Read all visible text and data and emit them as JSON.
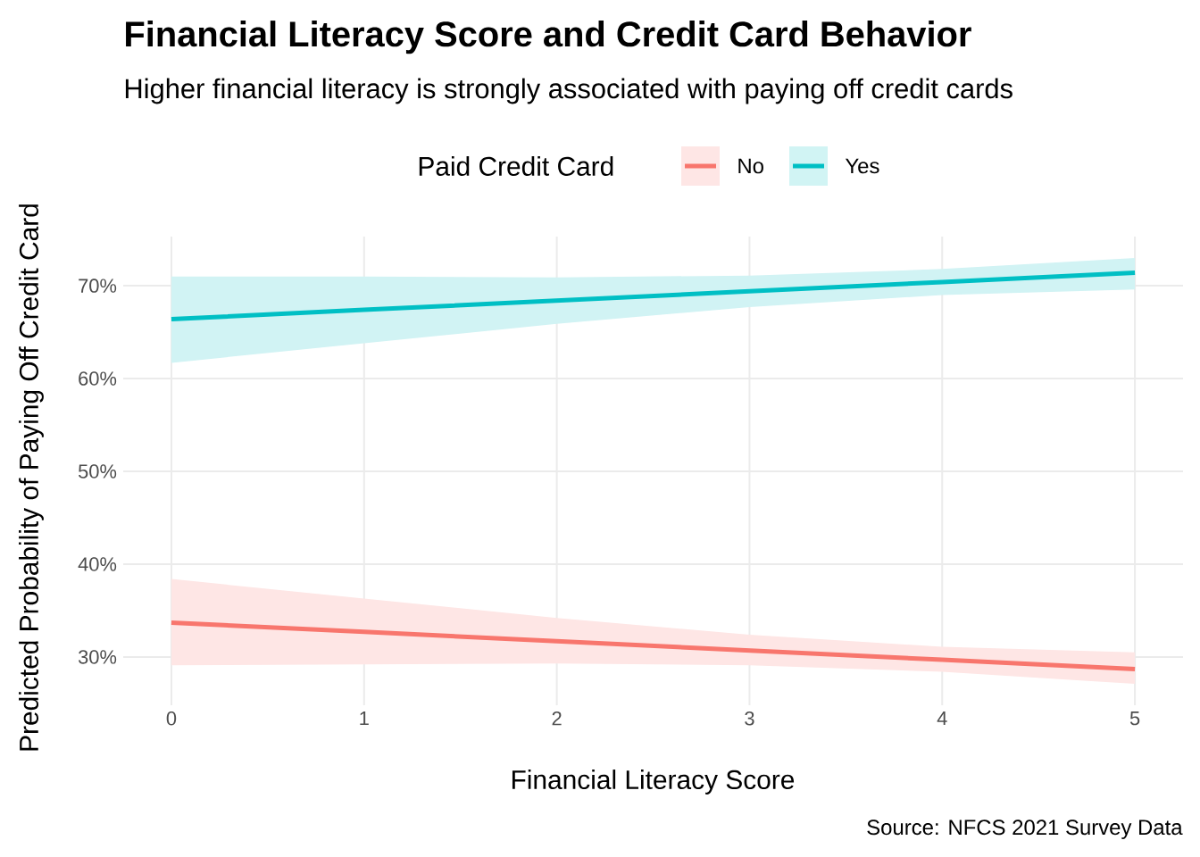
{
  "chart_data": {
    "type": "line",
    "title": "Financial Literacy Score and Credit Card Behavior",
    "subtitle": "Higher financial literacy is strongly associated with paying off credit cards",
    "xlabel": "Financial Literacy Score",
    "ylabel": "Predicted Probability of Paying Off Credit Card",
    "legend_title": "Paid Credit Card",
    "annotations": [
      "Source: NFCS 2021 Survey Data"
    ],
    "x": [
      0,
      1,
      2,
      3,
      4,
      5
    ],
    "series": [
      {
        "name": "No",
        "color": "#f8766d",
        "values": [
          33.7,
          32.7,
          31.7,
          30.7,
          29.7,
          28.7
        ],
        "lower": [
          29.1,
          29.2,
          29.3,
          29.1,
          28.4,
          27.1
        ],
        "upper": [
          38.4,
          36.3,
          34.2,
          32.4,
          31.1,
          30.5
        ]
      },
      {
        "name": "Yes",
        "color": "#00bfc4",
        "values": [
          66.4,
          67.4,
          68.4,
          69.4,
          70.4,
          71.4
        ],
        "lower": [
          61.7,
          63.8,
          65.9,
          67.7,
          69.0,
          69.6
        ],
        "upper": [
          71.0,
          71.0,
          70.9,
          71.1,
          71.8,
          73.0
        ]
      }
    ],
    "xlim": [
      -0.25,
      5.25
    ],
    "ylim": [
      24.8,
      75.3
    ],
    "xticks": [
      0,
      1,
      2,
      3,
      4,
      5
    ],
    "yticks": [
      {
        "value": 30,
        "label": "30%"
      },
      {
        "value": 40,
        "label": "40%"
      },
      {
        "value": 50,
        "label": "50%"
      },
      {
        "value": 60,
        "label": "60%"
      },
      {
        "value": 70,
        "label": "70%"
      }
    ],
    "grid": true,
    "legend": "top"
  }
}
